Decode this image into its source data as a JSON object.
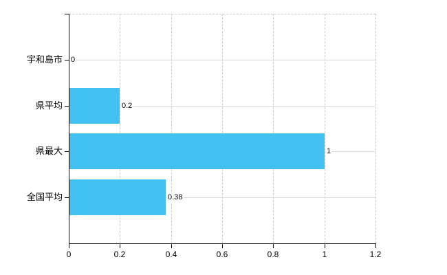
{
  "chart_data": {
    "type": "bar",
    "orientation": "horizontal",
    "categories": [
      "宇和島市",
      "県平均",
      "県最大",
      "全国平均"
    ],
    "values": [
      0,
      0.2,
      1,
      0.38
    ],
    "value_labels": [
      "0",
      "0.2",
      "1",
      "0.38"
    ],
    "xlim": [
      0,
      1.2
    ],
    "xticks": [
      0,
      0.2,
      0.4,
      0.6,
      0.8,
      1,
      1.2
    ],
    "xtick_labels": [
      "0",
      "0.2",
      "0.4",
      "0.6",
      "0.8",
      "1",
      "1.2"
    ],
    "grid": {
      "vertical_style": "dashed",
      "horizontal_style": "solid",
      "top_border": "dashed",
      "right_border": "dashed"
    },
    "legend": {
      "visible": false
    },
    "colors": {
      "bar": "#41C1F0",
      "axis": "#000000",
      "grid_vertical": "#c9c9c9",
      "grid_horizontal": "#d9ded9",
      "text": "#000000",
      "background": "#ffffff"
    }
  }
}
